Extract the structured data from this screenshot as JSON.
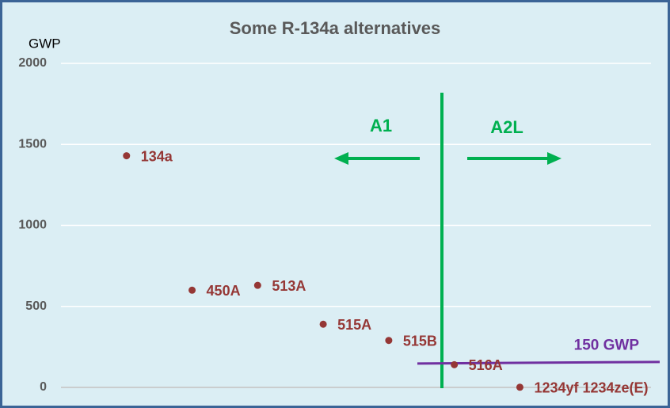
{
  "chart_data": {
    "type": "scatter",
    "title": "Some R-134a alternatives",
    "y_label": "GWP",
    "x": [
      1,
      2,
      3,
      4,
      5,
      6,
      7
    ],
    "xlim": [
      0,
      9
    ],
    "values": [
      1430,
      600,
      630,
      390,
      290,
      140,
      1
    ],
    "point_labels": [
      "134a",
      "450A",
      "513A",
      "515A",
      "515B",
      "516A",
      "1234yf 1234ze(E)"
    ],
    "color": "#953735",
    "ylim": [
      0,
      2000
    ],
    "yticks": [
      0,
      500,
      1000,
      1500,
      2000
    ],
    "grid": true,
    "threshold": {
      "value": 150,
      "label": "150 GWP",
      "color": "#7030a0"
    },
    "annotations": [
      "A1",
      "A2L"
    ]
  }
}
